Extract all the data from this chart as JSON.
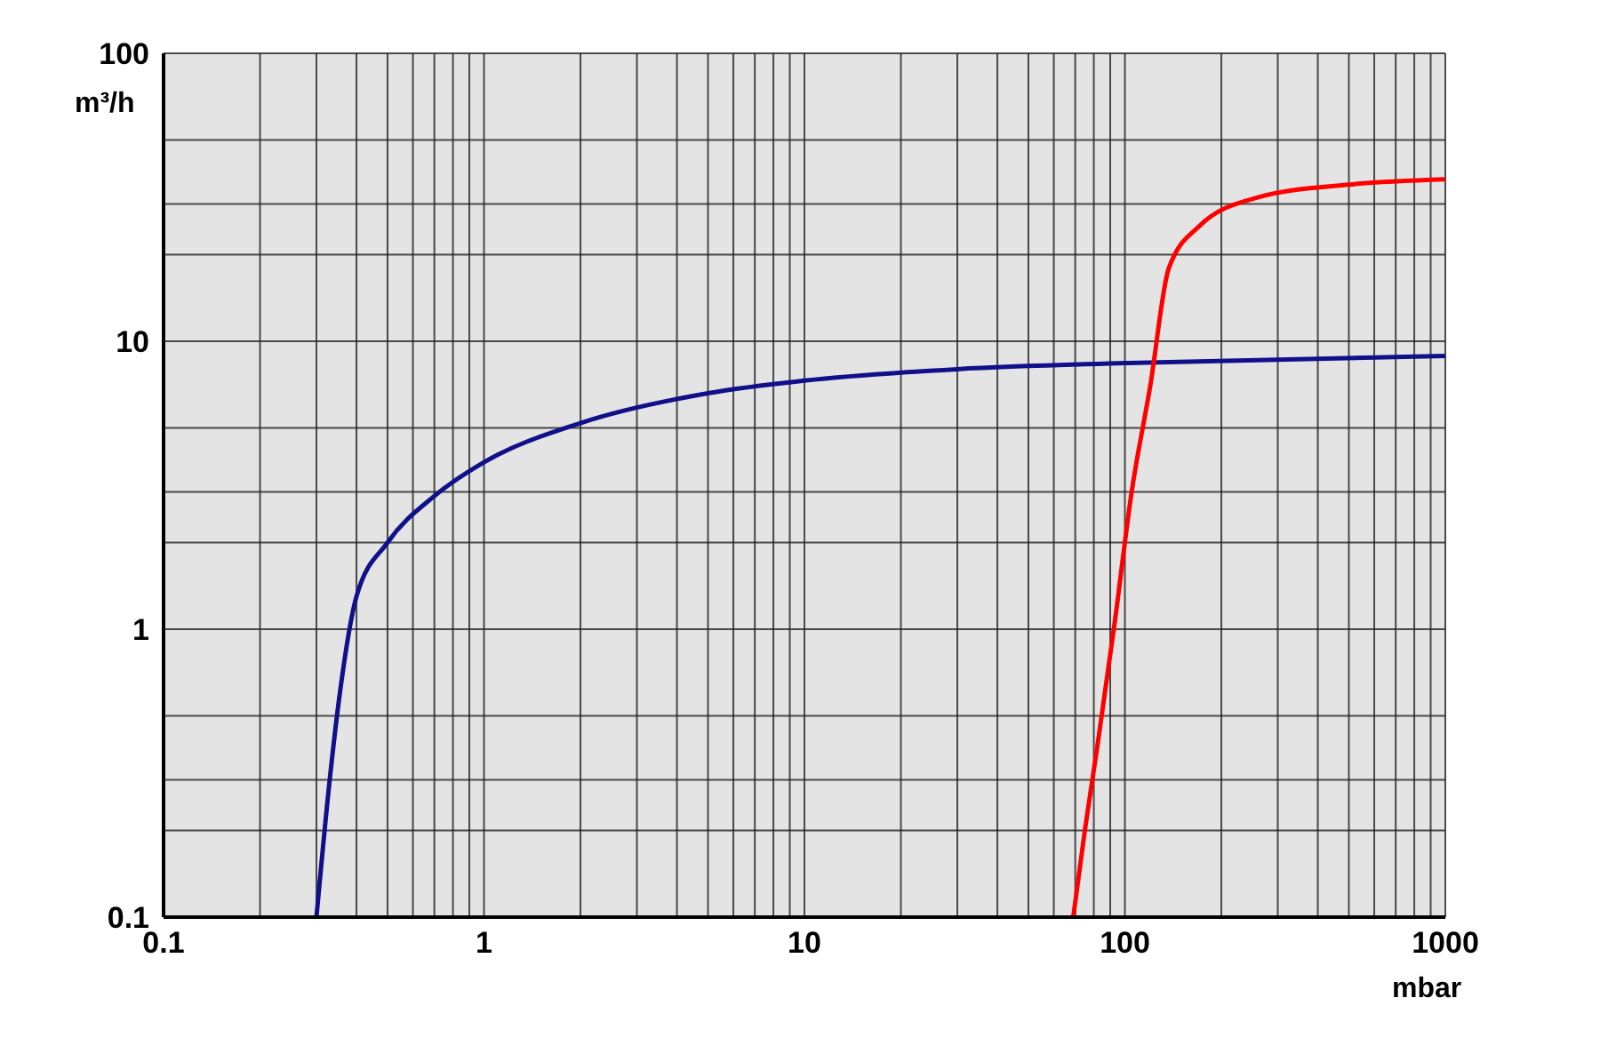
{
  "chart_data": {
    "type": "line",
    "xlabel": "mbar",
    "ylabel": "m³/h",
    "log": "xy",
    "grid": true,
    "marker": "none",
    "line_style": "solid",
    "xlim": [
      0.1,
      1000
    ],
    "ylim": [
      0.1,
      100
    ],
    "xticks": [
      0.1,
      {
        "value": 0.2,
        "label": null
      },
      {
        "value": 0.3,
        "label": null
      },
      {
        "value": 0.4,
        "label": null
      },
      {
        "value": 0.5,
        "label": null
      },
      {
        "value": 0.6,
        "label": null
      },
      {
        "value": 0.7,
        "label": null
      },
      {
        "value": 0.8,
        "label": null
      },
      {
        "value": 0.9,
        "label": null
      },
      1,
      {
        "value": 2,
        "label": null
      },
      {
        "value": 3,
        "label": null
      },
      {
        "value": 4,
        "label": null
      },
      {
        "value": 5,
        "label": null
      },
      {
        "value": 6,
        "label": null
      },
      {
        "value": 7,
        "label": null
      },
      {
        "value": 8,
        "label": null
      },
      {
        "value": 9,
        "label": null
      },
      10,
      {
        "value": 20,
        "label": null
      },
      {
        "value": 30,
        "label": null
      },
      {
        "value": 40,
        "label": null
      },
      {
        "value": 50,
        "label": null
      },
      {
        "value": 60,
        "label": null
      },
      {
        "value": 70,
        "label": null
      },
      {
        "value": 80,
        "label": null
      },
      {
        "value": 90,
        "label": null
      },
      100,
      {
        "value": 200,
        "label": null
      },
      {
        "value": 300,
        "label": null
      },
      {
        "value": 400,
        "label": null
      },
      {
        "value": 500,
        "label": null
      },
      {
        "value": 600,
        "label": null
      },
      {
        "value": 700,
        "label": null
      },
      {
        "value": 800,
        "label": null
      },
      {
        "value": 900,
        "label": null
      },
      1000
    ],
    "yticks": [
      0.1,
      {
        "value": 0.2,
        "label": null
      },
      {
        "value": 0.3,
        "label": null
      },
      {
        "value": 0.5,
        "label": null
      },
      1,
      {
        "value": 2,
        "label": null
      },
      {
        "value": 3,
        "label": null
      },
      {
        "value": 5,
        "label": null
      },
      10,
      {
        "value": 20,
        "label": null
      },
      {
        "value": 30,
        "label": null
      },
      {
        "value": 50,
        "label": null
      },
      100
    ],
    "series": [
      {
        "color": "#10108a",
        "x": [
          0.3,
          0.33,
          0.355,
          0.4,
          0.5,
          0.7,
          1,
          2,
          5,
          10,
          30,
          100,
          1000
        ],
        "values": [
          0.1,
          0.3,
          0.6,
          1.3,
          2,
          2.9,
          3.8,
          5.2,
          6.6,
          7.3,
          8,
          8.4,
          8.9
        ]
      },
      {
        "color": "#ff0000",
        "x": [
          69,
          75,
          82,
          93,
          105,
          120,
          137,
          170,
          260,
          500,
          1000
        ],
        "values": [
          0.1,
          0.2,
          0.39,
          1.06,
          3,
          7,
          17.9,
          25,
          31.6,
          35,
          36.5
        ]
      }
    ]
  }
}
